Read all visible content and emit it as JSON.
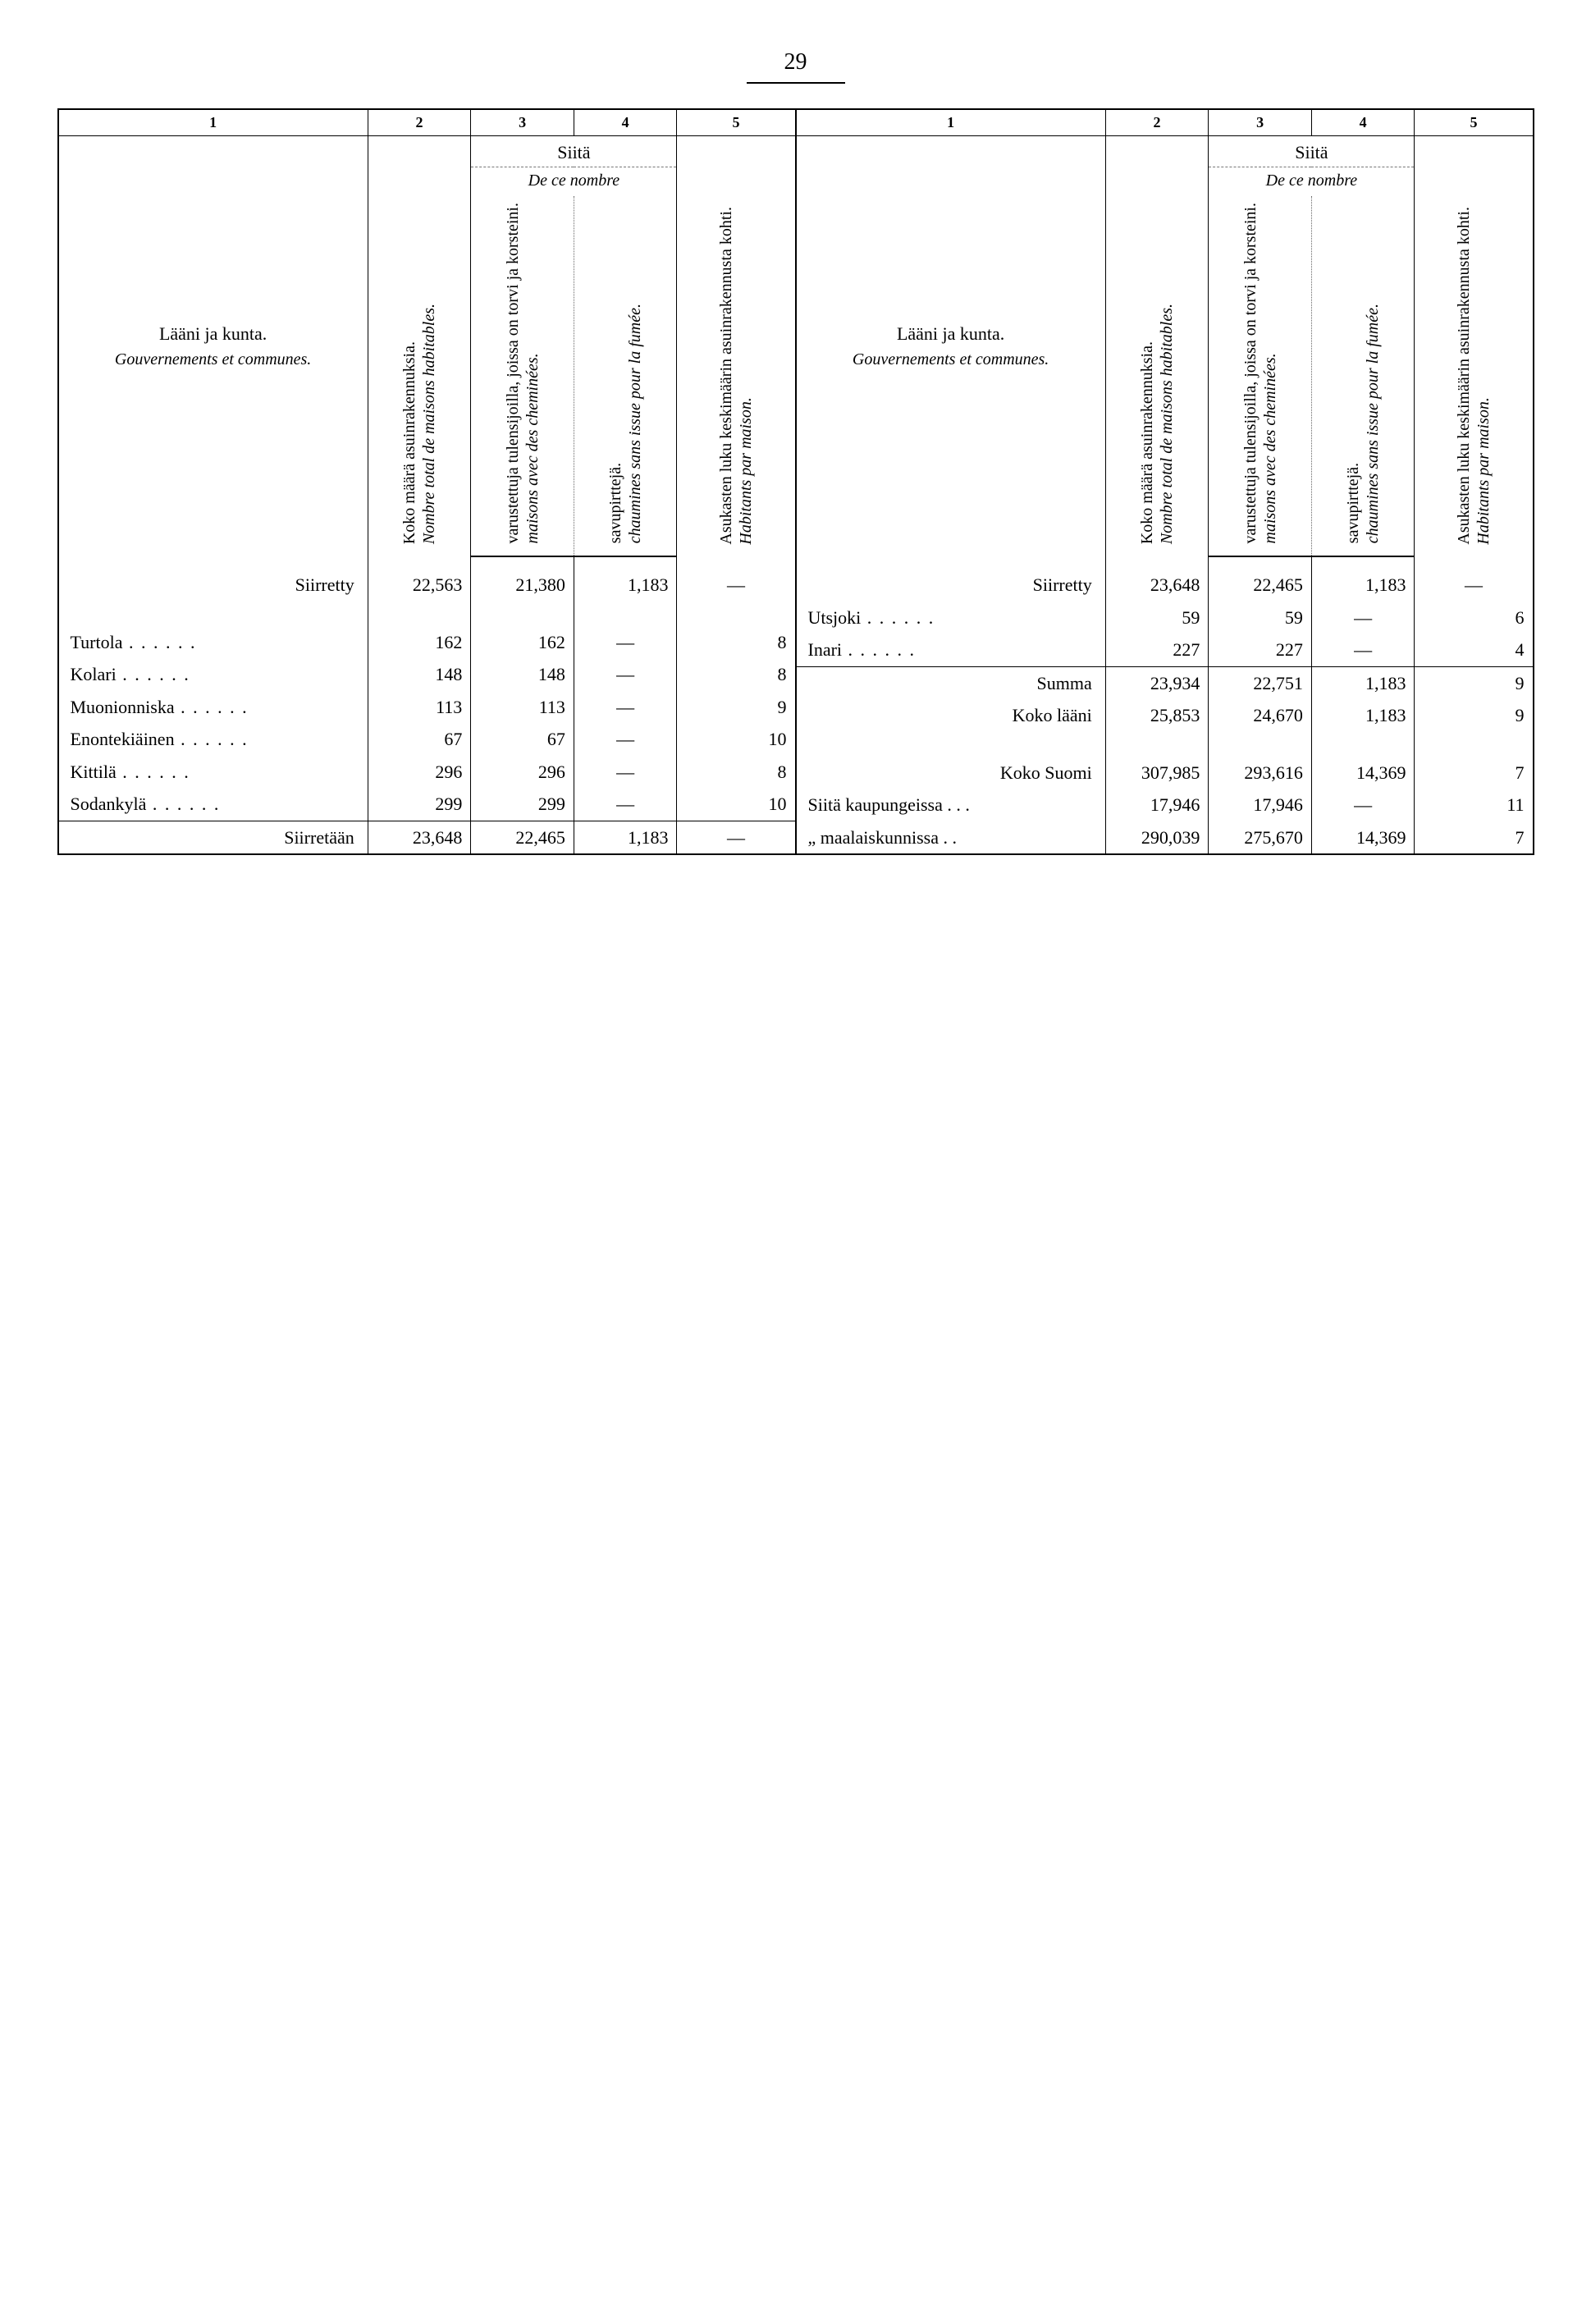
{
  "page_number": "29",
  "header": {
    "col_numbers": [
      "1",
      "2",
      "3",
      "4",
      "5"
    ],
    "label_fi": "Lääni ja kunta.",
    "label_fr": "Gouvernements et communes.",
    "siita": "Siitä",
    "dece": "De ce nombre",
    "col2_fi": "Koko määrä asuinrakennuksia.",
    "col2_fr": "Nombre total de maisons habitables.",
    "col3_fi": "varustettuja tulensijoilla, joissa on torvi ja korsteini.",
    "col3_fr": "maisons avec des cheminées.",
    "col4_fi": "savupirttejä.",
    "col4_fr": "chaumines sans issue pour la fumée.",
    "col5_fi": "Asukasten luku keskimäärin asuinrakennusta kohti.",
    "col5_fr": "Habitants par maison."
  },
  "left": {
    "rows": [
      {
        "name": "Siirretty",
        "align": "right",
        "c2": "22,563",
        "c3": "21,380",
        "c4": "1,183",
        "c5": "—"
      },
      {
        "spacer": true
      },
      {
        "name": "Turtola",
        "dots": true,
        "c2": "162",
        "c3": "162",
        "c4": "—",
        "c5": "8"
      },
      {
        "name": "Kolari",
        "dots": true,
        "c2": "148",
        "c3": "148",
        "c4": "—",
        "c5": "8"
      },
      {
        "name": "Muonionniska",
        "dots": true,
        "c2": "113",
        "c3": "113",
        "c4": "—",
        "c5": "9"
      },
      {
        "name": "Enontekiäinen",
        "dots": true,
        "c2": "67",
        "c3": "67",
        "c4": "—",
        "c5": "10"
      },
      {
        "name": "Kittilä",
        "dots": true,
        "c2": "296",
        "c3": "296",
        "c4": "—",
        "c5": "8"
      },
      {
        "name": "Sodankylä",
        "dots": true,
        "c2": "299",
        "c3": "299",
        "c4": "—",
        "c5": "10"
      },
      {
        "name": "Siirretään",
        "align": "right",
        "hr": true,
        "c2": "23,648",
        "c3": "22,465",
        "c4": "1,183",
        "c5": "—"
      }
    ]
  },
  "right": {
    "rows": [
      {
        "name": "Siirretty",
        "align": "right",
        "c2": "23,648",
        "c3": "22,465",
        "c4": "1,183",
        "c5": "—"
      },
      {
        "name": "Utsjoki",
        "dots": true,
        "c2": "59",
        "c3": "59",
        "c4": "—",
        "c5": "6"
      },
      {
        "name": "Inari",
        "dots": true,
        "c2": "227",
        "c3": "227",
        "c4": "—",
        "c5": "4"
      },
      {
        "name": "Summa",
        "align": "right",
        "hr": true,
        "c2": "23,934",
        "c3": "22,751",
        "c4": "1,183",
        "c5": "9"
      },
      {
        "name": "Koko lääni",
        "align": "right",
        "c2": "25,853",
        "c3": "24,670",
        "c4": "1,183",
        "c5": "9"
      },
      {
        "spacer": true
      },
      {
        "name": "Koko Suomi",
        "align": "right",
        "c2": "307,985",
        "c3": "293,616",
        "c4": "14,369",
        "c5": "7"
      },
      {
        "name": "Siitä kaupungeissa .  .  .",
        "c2": "17,946",
        "c3": "17,946",
        "c4": "—",
        "c5": "11"
      },
      {
        "name": "  „    maalaiskunnissa  .  .",
        "c2": "290,039",
        "c3": "275,670",
        "c4": "14,369",
        "c5": "7"
      }
    ]
  }
}
